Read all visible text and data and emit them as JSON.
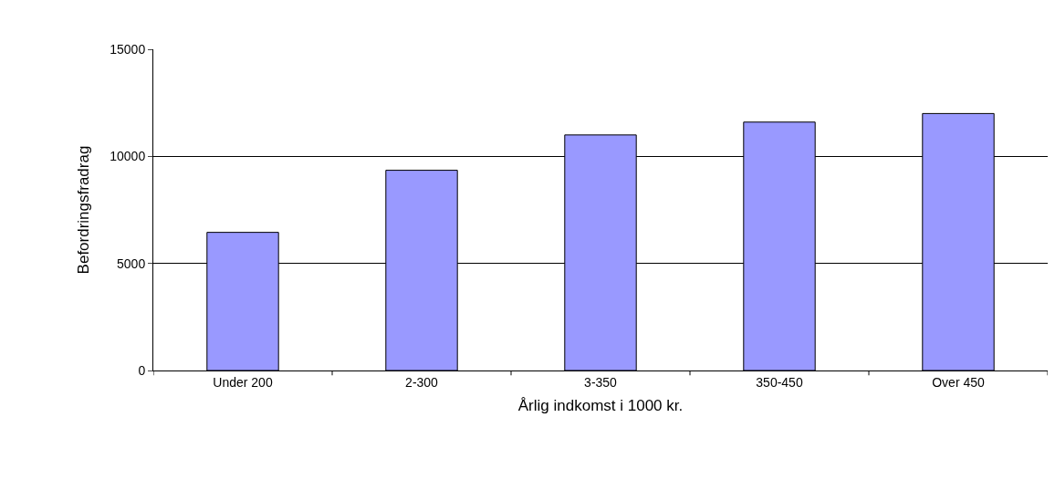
{
  "chart_data": {
    "type": "bar",
    "xlabel": "Årlig indkomst i 1000 kr.",
    "ylabel": "Befordringsfradrag",
    "categories": [
      "Under 200",
      "2-300",
      "3-350",
      "350-450",
      "Over 450"
    ],
    "values": [
      6450,
      9350,
      11000,
      11600,
      12000
    ],
    "color": "#9999ff",
    "ylim": [
      0,
      15000
    ],
    "yticks": [
      0,
      5000,
      10000,
      15000
    ],
    "grid": "y"
  }
}
